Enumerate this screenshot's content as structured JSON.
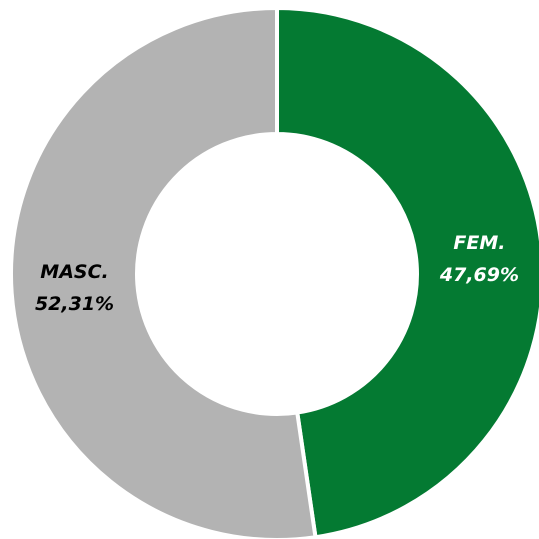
{
  "chart_data": {
    "type": "donut",
    "categories": [
      "FEM.",
      "MASC."
    ],
    "values": [
      47.69,
      52.31
    ],
    "value_labels": [
      "47,69%",
      "52,31%"
    ],
    "colors": [
      "#047a32",
      "#b3b3b3"
    ],
    "label_colors": [
      "#ffffff",
      "#000000"
    ]
  }
}
